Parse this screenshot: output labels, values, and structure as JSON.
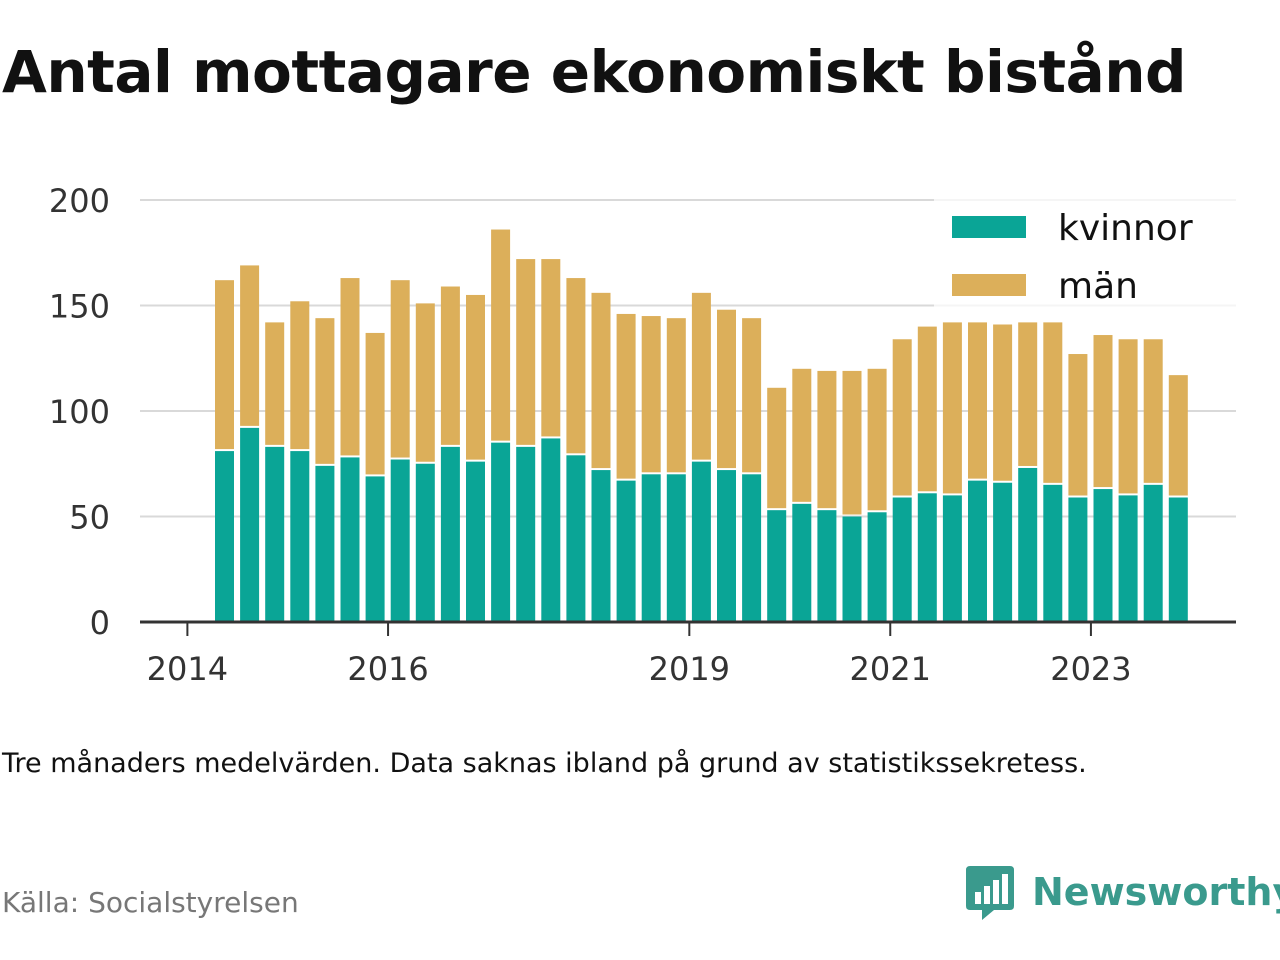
{
  "title": "Antal mottagare ekonomiskt bistånd",
  "note": "Tre månaders medelvärden. Data saknas ibland på grund av statistikssekretess.",
  "source": "Källa: Socialstyrelsen",
  "brand": {
    "name": "Newsworthy",
    "icon": "newsworthy-logo-icon",
    "color": "#3a9a8d"
  },
  "chart_data": {
    "type": "bar",
    "stacked": true,
    "categories": [
      "2014-Q2",
      "2014-Q3",
      "2014-Q4",
      "2015-Q1",
      "2015-Q2",
      "2015-Q3",
      "2015-Q4",
      "2016-Q1",
      "2016-Q2",
      "2016-Q3",
      "2016-Q4",
      "2017-Q1",
      "2017-Q2",
      "2017-Q3",
      "2017-Q4",
      "2018-Q1",
      "2018-Q2",
      "2018-Q3",
      "2018-Q4",
      "2019-Q1",
      "2019-Q2",
      "2019-Q3",
      "2019-Q4",
      "2020-Q1",
      "2020-Q2",
      "2020-Q3",
      "2020-Q4",
      "2021-Q1",
      "2021-Q2",
      "2021-Q3",
      "2021-Q4",
      "2022-Q1",
      "2022-Q2",
      "2022-Q3",
      "2022-Q4",
      "2023-Q1",
      "2023-Q2",
      "2023-Q3",
      "2023-Q4"
    ],
    "series": [
      {
        "name": "kvinnor",
        "color": "#0aa596",
        "values": [
          81,
          92,
          83,
          81,
          74,
          78,
          69,
          77,
          75,
          83,
          76,
          85,
          83,
          87,
          79,
          72,
          67,
          70,
          70,
          76,
          72,
          70,
          53,
          56,
          53,
          50,
          52,
          59,
          61,
          60,
          67,
          66,
          73,
          65,
          59,
          63,
          60,
          65,
          59
        ]
      },
      {
        "name": "män",
        "color": "#dcaf5a",
        "values": [
          81,
          77,
          59,
          71,
          70,
          85,
          68,
          85,
          76,
          76,
          79,
          101,
          89,
          85,
          84,
          84,
          79,
          75,
          74,
          80,
          76,
          74,
          58,
          64,
          66,
          69,
          68,
          75,
          79,
          82,
          75,
          75,
          69,
          77,
          68,
          73,
          74,
          69,
          58
        ]
      }
    ],
    "x_ticks": [
      "2014",
      "2016",
      "2019",
      "2021",
      "2023"
    ],
    "x_tick_dates": [
      "2014-01-01",
      "2016-01-01",
      "2019-01-01",
      "2021-01-01",
      "2023-01-01"
    ],
    "y_ticks": [
      0,
      50,
      100,
      150,
      200
    ],
    "ylim": [
      0,
      200
    ],
    "grid": true,
    "legend": "top-right",
    "xlabel": "",
    "ylabel": ""
  }
}
